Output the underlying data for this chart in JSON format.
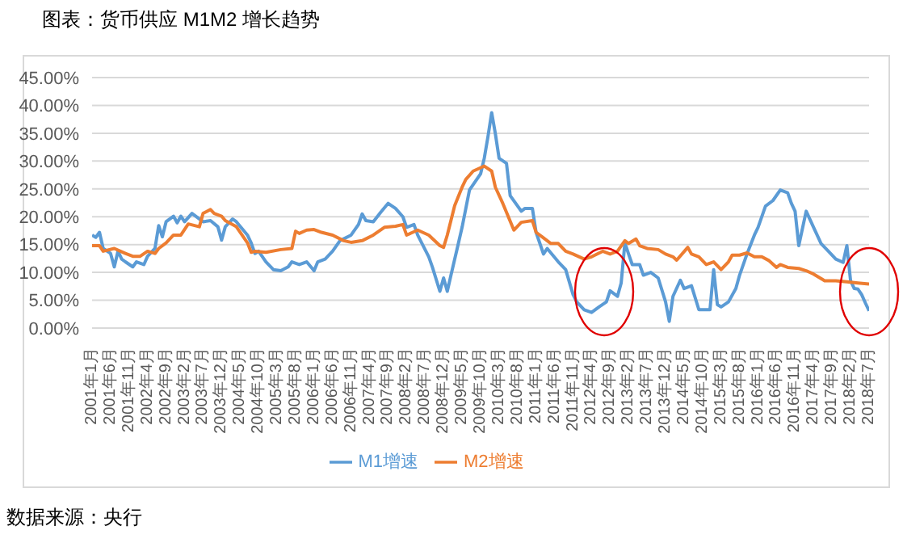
{
  "chart_data": {
    "type": "line",
    "title": "图表：货币供应 M1M2 增长趋势",
    "annotations": [
      "数据来源：央行"
    ],
    "xlim": [
      "2001-01",
      "2018-07"
    ],
    "xticks": [
      {
        "value": "2001-01",
        "label": "2001年1月"
      },
      {
        "value": "2001-06",
        "label": "2001年6月"
      },
      {
        "value": "2001-11",
        "label": "2001年11月"
      },
      {
        "value": "2002-04",
        "label": "2002年4月"
      },
      {
        "value": "2002-09",
        "label": "2002年9月"
      },
      {
        "value": "2003-02",
        "label": "2003年2月"
      },
      {
        "value": "2003-07",
        "label": "2003年7月"
      },
      {
        "value": "2003-12",
        "label": "2003年12月"
      },
      {
        "value": "2004-05",
        "label": "2004年5月"
      },
      {
        "value": "2004-10",
        "label": "2004年10月"
      },
      {
        "value": "2005-03",
        "label": "2005年3月"
      },
      {
        "value": "2005-08",
        "label": "2005年8月"
      },
      {
        "value": "2006-01",
        "label": "2006年1月"
      },
      {
        "value": "2006-06",
        "label": "2006年6月"
      },
      {
        "value": "2006-11",
        "label": "2006年11月"
      },
      {
        "value": "2007-04",
        "label": "2007年4月"
      },
      {
        "value": "2007-09",
        "label": "2007年9月"
      },
      {
        "value": "2008-02",
        "label": "2008年2月"
      },
      {
        "value": "2008-07",
        "label": "2008年7月"
      },
      {
        "value": "2008-12",
        "label": "2008年12月"
      },
      {
        "value": "2009-05",
        "label": "2009年5月"
      },
      {
        "value": "2009-10",
        "label": "2009年10月"
      },
      {
        "value": "2010-03",
        "label": "2010年3月"
      },
      {
        "value": "2010-08",
        "label": "2010年8月"
      },
      {
        "value": "2011-01",
        "label": "2011年1月"
      },
      {
        "value": "2011-06",
        "label": "2011年6月"
      },
      {
        "value": "2011-11",
        "label": "2011年11月"
      },
      {
        "value": "2012-04",
        "label": "2012年4月"
      },
      {
        "value": "2012-09",
        "label": "2012年9月"
      },
      {
        "value": "2013-02",
        "label": "2013年2月"
      },
      {
        "value": "2013-07",
        "label": "2013年7月"
      },
      {
        "value": "2013-12",
        "label": "2013年12月"
      },
      {
        "value": "2014-05",
        "label": "2014年5月"
      },
      {
        "value": "2014-10",
        "label": "2014年10月"
      },
      {
        "value": "2015-03",
        "label": "2015年3月"
      },
      {
        "value": "2015-08",
        "label": "2015年8月"
      },
      {
        "value": "2016-01",
        "label": "2016年1月"
      },
      {
        "value": "2016-06",
        "label": "2016年6月"
      },
      {
        "value": "2016-11",
        "label": "2016年11月"
      },
      {
        "value": "2017-04",
        "label": "2017年4月"
      },
      {
        "value": "2017-09",
        "label": "2017年9月"
      },
      {
        "value": "2018-02",
        "label": "2018年2月"
      },
      {
        "value": "2018-07",
        "label": "2018年7月"
      }
    ],
    "ylim": [
      0,
      45
    ],
    "yticks": [
      {
        "value": 0,
        "label": "0.00%"
      },
      {
        "value": 5,
        "label": "5.00%"
      },
      {
        "value": 10,
        "label": "10.00%"
      },
      {
        "value": 15,
        "label": "15.00%"
      },
      {
        "value": 20,
        "label": "20.00%"
      },
      {
        "value": 25,
        "label": "25.00%"
      },
      {
        "value": 30,
        "label": "30.00%"
      },
      {
        "value": 35,
        "label": "35.00%"
      },
      {
        "value": 40,
        "label": "40.00%"
      },
      {
        "value": 45,
        "label": "45.00%"
      }
    ],
    "grid": "y",
    "legend": "bottom",
    "series": [
      {
        "name": "M1增速",
        "color": "#5b9bd5",
        "x": [
          "2001-01",
          "2001-02",
          "2001-03",
          "2001-04",
          "2001-06",
          "2001-07",
          "2001-08",
          "2001-09",
          "2001-10",
          "2001-12",
          "2002-01",
          "2002-03",
          "2002-04",
          "2002-06",
          "2002-07",
          "2002-08",
          "2002-09",
          "2002-11",
          "2002-12",
          "2003-01",
          "2003-02",
          "2003-04",
          "2003-07",
          "2003-09",
          "2003-11",
          "2003-12",
          "2004-01",
          "2004-03",
          "2004-04",
          "2004-07",
          "2004-08",
          "2004-09",
          "2004-10",
          "2004-12",
          "2005-02",
          "2005-04",
          "2005-06",
          "2005-07",
          "2005-09",
          "2005-11",
          "2006-01",
          "2006-02",
          "2006-04",
          "2006-06",
          "2006-08",
          "2006-11",
          "2007-01",
          "2007-02",
          "2007-03",
          "2007-05",
          "2007-07",
          "2007-09",
          "2007-11",
          "2008-01",
          "2008-02",
          "2008-04",
          "2008-05",
          "2008-08",
          "2008-09",
          "2008-11",
          "2008-12",
          "2009-01",
          "2009-02",
          "2009-04",
          "2009-05",
          "2009-07",
          "2009-10",
          "2009-11",
          "2009-12",
          "2010-01",
          "2010-02",
          "2010-03",
          "2010-05",
          "2010-06",
          "2010-09",
          "2010-10",
          "2010-12",
          "2011-01",
          "2011-03",
          "2011-04",
          "2011-07",
          "2011-09",
          "2011-11",
          "2011-12",
          "2012-02",
          "2012-04",
          "2012-06",
          "2012-08",
          "2012-09",
          "2012-11",
          "2012-12",
          "2013-01",
          "2013-02",
          "2013-03",
          "2013-05",
          "2013-06",
          "2013-08",
          "2013-10",
          "2013-12",
          "2014-01",
          "2014-02",
          "2014-04",
          "2014-05",
          "2014-07",
          "2014-09",
          "2014-12",
          "2015-01",
          "2015-02",
          "2015-03",
          "2015-05",
          "2015-07",
          "2015-08",
          "2015-10",
          "2015-12",
          "2016-01",
          "2016-03",
          "2016-05",
          "2016-07",
          "2016-09",
          "2016-10",
          "2016-11",
          "2016-12",
          "2017-02",
          "2017-04",
          "2017-06",
          "2017-08",
          "2017-10",
          "2017-12",
          "2018-01",
          "2018-02",
          "2018-03",
          "2018-04",
          "2018-05",
          "2018-06",
          "2018-07"
        ],
        "values": [
          16.7,
          16.3,
          17.2,
          14.3,
          13.4,
          11,
          13.8,
          12.4,
          11.9,
          11,
          11.9,
          11.4,
          12.9,
          14.3,
          18.4,
          16.4,
          19.1,
          20.1,
          18.9,
          20.1,
          19.1,
          20.6,
          19.1,
          19.3,
          18.2,
          15.8,
          18.2,
          19.6,
          19.1,
          16.7,
          15.3,
          13.4,
          13.8,
          11.9,
          10.5,
          10.3,
          11,
          11.9,
          11.4,
          11.9,
          10.3,
          11.9,
          12.4,
          13.8,
          15.7,
          16.7,
          18.6,
          20.5,
          19.3,
          19.1,
          20.8,
          22.4,
          21.5,
          20,
          18.1,
          18.6,
          16.7,
          12.8,
          10.9,
          6.6,
          9,
          6.6,
          9.5,
          15.2,
          18.1,
          24.8,
          27.7,
          30.5,
          34.4,
          38.7,
          34.9,
          30.5,
          29.6,
          23.8,
          21,
          21.5,
          21.5,
          17.2,
          13.3,
          14.3,
          11.9,
          10.5,
          6,
          4.7,
          3.3,
          2.8,
          3.8,
          4.7,
          6.7,
          5.7,
          8.1,
          15.3,
          13.3,
          11.4,
          11.4,
          9.5,
          10,
          9,
          4.7,
          1.2,
          5.7,
          8.6,
          7.1,
          7.6,
          3.3,
          3.3,
          10.5,
          4.2,
          3.8,
          4.7,
          7.1,
          9.5,
          13.3,
          16.7,
          18.1,
          21.9,
          22.9,
          24.8,
          24.3,
          22.4,
          21,
          14.8,
          21,
          18.1,
          15.2,
          13.8,
          12.4,
          11.8,
          14.8,
          8.5,
          7.1,
          7,
          6,
          4.5,
          3.1
        ]
      },
      {
        "name": "M2增速",
        "color": "#ed7d31",
        "x": [
          "2001-01",
          "2001-03",
          "2001-04",
          "2001-07",
          "2001-10",
          "2001-12",
          "2002-02",
          "2002-04",
          "2002-06",
          "2002-07",
          "2002-09",
          "2002-11",
          "2003-01",
          "2003-03",
          "2003-06",
          "2003-07",
          "2003-09",
          "2003-10",
          "2003-12",
          "2004-01",
          "2004-04",
          "2004-07",
          "2004-08",
          "2004-09",
          "2004-12",
          "2005-04",
          "2005-07",
          "2005-08",
          "2005-09",
          "2005-11",
          "2006-01",
          "2006-03",
          "2006-06",
          "2006-09",
          "2006-11",
          "2007-02",
          "2007-05",
          "2007-08",
          "2007-11",
          "2008-01",
          "2008-02",
          "2008-05",
          "2008-08",
          "2008-11",
          "2008-12",
          "2009-01",
          "2009-03",
          "2009-05",
          "2009-06",
          "2009-08",
          "2009-11",
          "2010-01",
          "2010-02",
          "2010-04",
          "2010-07",
          "2010-09",
          "2010-12",
          "2011-01",
          "2011-03",
          "2011-05",
          "2011-07",
          "2011-09",
          "2011-11",
          "2012-02",
          "2012-04",
          "2012-07",
          "2012-09",
          "2012-11",
          "2013-01",
          "2013-02",
          "2013-04",
          "2013-05",
          "2013-07",
          "2013-10",
          "2013-12",
          "2014-02",
          "2014-03",
          "2014-06",
          "2014-07",
          "2014-09",
          "2014-11",
          "2015-01",
          "2015-03",
          "2015-05",
          "2015-06",
          "2015-08",
          "2015-10",
          "2015-12",
          "2016-02",
          "2016-04",
          "2016-06",
          "2016-07",
          "2016-09",
          "2016-12",
          "2017-02",
          "2017-04",
          "2017-07",
          "2017-10",
          "2018-01",
          "2018-04",
          "2018-07"
        ],
        "values": [
          14.8,
          14.8,
          13.8,
          14.3,
          13.4,
          12.9,
          12.9,
          13.8,
          13.4,
          14.3,
          15.3,
          16.7,
          16.7,
          18.7,
          18.2,
          20.6,
          21.3,
          20.6,
          20.1,
          19.3,
          18.2,
          15.3,
          13.6,
          13.8,
          13.6,
          14.1,
          14.3,
          17.4,
          17,
          17.6,
          17.7,
          17.2,
          16.7,
          15.7,
          15.4,
          15.7,
          16.7,
          18.1,
          18.3,
          18.6,
          16.7,
          17.6,
          16.7,
          14.8,
          14.5,
          16.7,
          22,
          25.3,
          26.7,
          28.2,
          29.1,
          28.2,
          25.3,
          22.4,
          17.6,
          19,
          19.3,
          17.2,
          16.2,
          15.2,
          15.2,
          13.8,
          13.3,
          12.4,
          12.8,
          13.8,
          13.3,
          13.8,
          15.7,
          15.2,
          16,
          14.8,
          14.3,
          14.1,
          13.3,
          12.8,
          12.2,
          14.5,
          13.3,
          12.8,
          11.4,
          11.9,
          10.5,
          11.9,
          13.1,
          13.1,
          13.5,
          12.8,
          12.8,
          12.1,
          10.9,
          11.4,
          10.9,
          10.7,
          10.3,
          9.7,
          8.5,
          8.5,
          8.3,
          8.1,
          7.9
        ]
      }
    ]
  }
}
